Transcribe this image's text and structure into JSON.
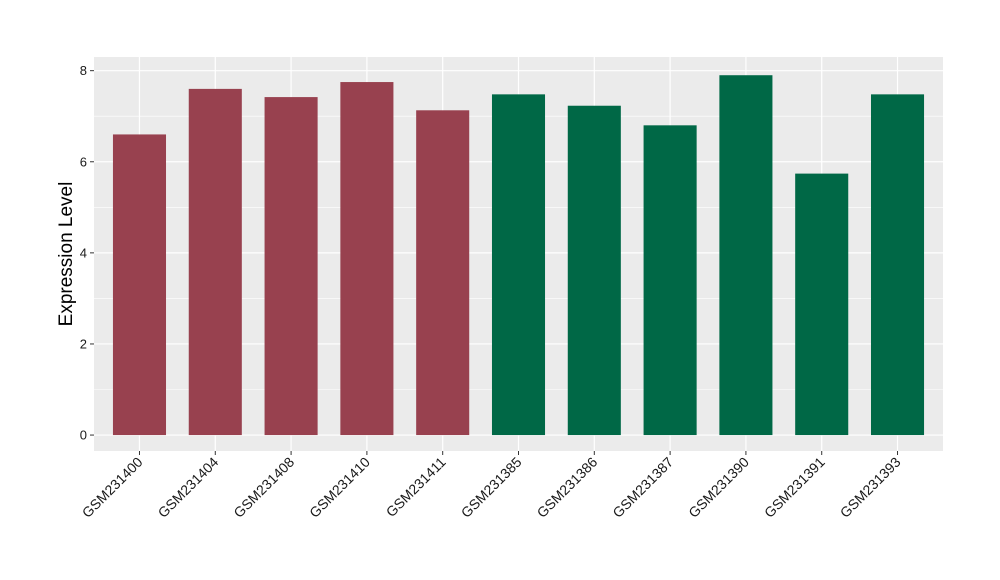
{
  "chart_data": {
    "type": "bar",
    "title": "",
    "xlabel": "",
    "ylabel": "Expression Level",
    "ylim": [
      -0.35,
      8.3
    ],
    "yticks": [
      0,
      2,
      4,
      6,
      8
    ],
    "grid": true,
    "legend": "none",
    "colors": {
      "panel_bg": "#ebebeb",
      "grid": "#ffffff",
      "group1": "#98414f",
      "group2": "#006846"
    },
    "categories": [
      "GSM231400",
      "GSM231404",
      "GSM231408",
      "GSM231410",
      "GSM231411",
      "GSM231385",
      "GSM231386",
      "GSM231387",
      "GSM231390",
      "GSM231391",
      "GSM231393"
    ],
    "values": [
      6.6,
      7.6,
      7.42,
      7.75,
      7.13,
      7.48,
      7.23,
      6.8,
      7.9,
      5.74,
      7.48
    ],
    "bar_colors": [
      "#98414f",
      "#98414f",
      "#98414f",
      "#98414f",
      "#98414f",
      "#006846",
      "#006846",
      "#006846",
      "#006846",
      "#006846",
      "#006846"
    ]
  }
}
